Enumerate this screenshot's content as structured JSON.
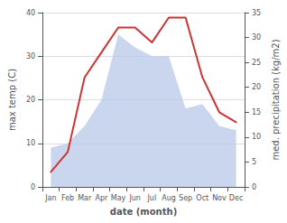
{
  "chart_data": {
    "type": "line",
    "xlabel": "date (month)",
    "ylabel": "max temp (C)",
    "y2label": "med. precipitation (kg/m2)",
    "categories": [
      "Jan",
      "Feb",
      "Mar",
      "Apr",
      "May",
      "Jun",
      "Jul",
      "Aug",
      "Sep",
      "Oct",
      "Nov",
      "Dec"
    ],
    "series": [
      {
        "type": "area",
        "color": "#b8c8e8",
        "values": [
          9,
          10,
          14,
          20,
          35,
          32,
          30,
          30,
          18,
          19,
          14,
          13
        ]
      },
      {
        "type": "line",
        "color": "#cc3333",
        "axis": "y2",
        "values": [
          3,
          7,
          22,
          27,
          32,
          32,
          29,
          34,
          34,
          22,
          15,
          13
        ]
      }
    ],
    "ylim": [
      0,
      40
    ],
    "yticks": [
      0,
      10,
      20,
      30,
      40
    ],
    "y2lim": [
      0,
      35
    ],
    "y2ticks": [
      0,
      5,
      10,
      15,
      20,
      25,
      30,
      35
    ],
    "grid": true
  }
}
